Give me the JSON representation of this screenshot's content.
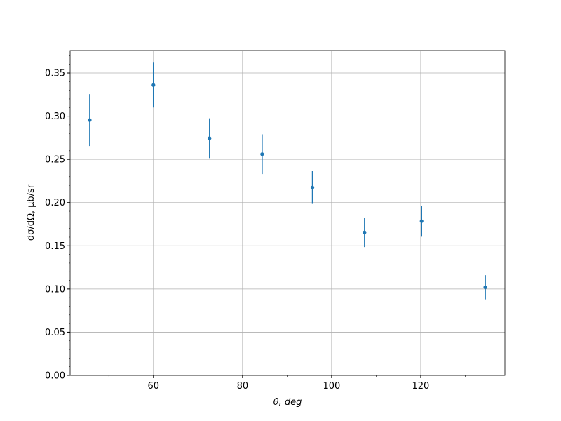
{
  "chart_data": {
    "type": "errorbar",
    "x_label": "θ, deg",
    "y_label": "dσ/dΩ, μb/sr",
    "series": [
      {
        "color": "#1f77b4",
        "x": [
          45.7,
          60,
          72.6,
          84.4,
          95.7,
          107.4,
          120.2,
          134.5
        ],
        "values": [
          0.2955,
          0.336,
          0.2745,
          0.256,
          0.2175,
          0.1655,
          0.1785,
          0.102
        ],
        "errors": [
          0.03,
          0.026,
          0.023,
          0.023,
          0.019,
          0.017,
          0.018,
          0.014
        ]
      }
    ],
    "xlim": [
      41.3,
      138.9
    ],
    "ylim": [
      0,
      0.376
    ],
    "xticks": [
      60,
      80,
      100,
      120
    ],
    "yticks": [
      {
        "value": 0,
        "label": "0.00"
      },
      {
        "value": 0.05,
        "label": "0.05"
      },
      {
        "value": 0.1,
        "label": "0.10"
      },
      {
        "value": 0.15,
        "label": "0.15"
      },
      {
        "value": 0.2,
        "label": "0.20"
      },
      {
        "value": 0.25,
        "label": "0.25"
      },
      {
        "value": 0.3,
        "label": "0.30"
      },
      {
        "value": 0.35,
        "label": "0.35"
      }
    ],
    "grid": true,
    "minor_ticks": true
  }
}
